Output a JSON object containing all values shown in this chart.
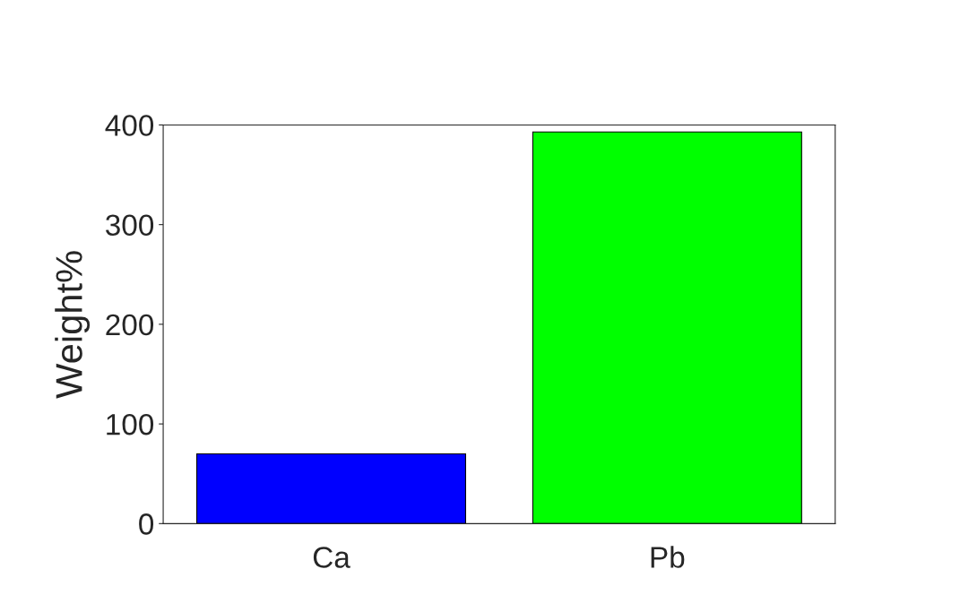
{
  "chart_data": {
    "type": "bar",
    "ylabel": "Weight%",
    "categories": [
      "Ca",
      "Pb"
    ],
    "values": [
      70,
      393
    ],
    "colors": [
      "#0000ff",
      "#00ff00"
    ],
    "ylim": [
      0,
      400
    ],
    "yticks": [
      0,
      100,
      200,
      300,
      400
    ],
    "grid": false,
    "legend": false
  }
}
